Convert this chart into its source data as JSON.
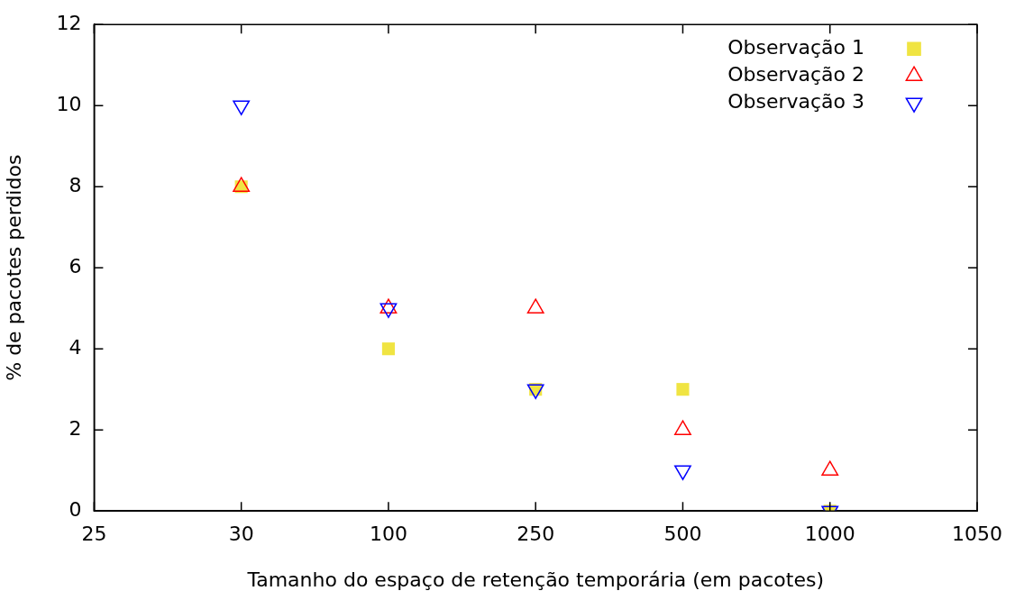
{
  "chart_data": {
    "type": "scatter",
    "xlabel": "Tamanho do espaço de retenção temporária (em pacotes)",
    "ylabel": "% de pacotes perdidos",
    "categories": [
      "25",
      "30",
      "100",
      "250",
      "500",
      "1000",
      "1050"
    ],
    "ylim": [
      0,
      12
    ],
    "yticks": [
      0,
      2,
      4,
      6,
      8,
      10,
      12
    ],
    "grid": false,
    "legend": "top right",
    "series": [
      {
        "name": "Observação 1",
        "color": "#f0e442",
        "marker": "square",
        "values": [
          null,
          8,
          4,
          3,
          3,
          0,
          null
        ]
      },
      {
        "name": "Observação 2",
        "color": "#ff0000",
        "marker": "triangle",
        "values": [
          null,
          8,
          5,
          5,
          2,
          1,
          null
        ]
      },
      {
        "name": "Observação 3",
        "color": "#0000ff",
        "marker": "triangle-down",
        "values": [
          null,
          10,
          5,
          3,
          1,
          0,
          null
        ]
      }
    ]
  }
}
